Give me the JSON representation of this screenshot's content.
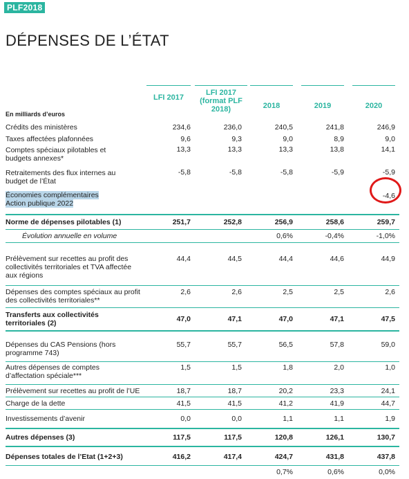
{
  "tag": "PLF2018",
  "title": "DÉPENSES DE L’ÉTAT",
  "unit_label": "En milliards d’euros",
  "columns": [
    "LFI 2017",
    "LFI 2017 (format PLF 2018)",
    "2018",
    "2019",
    "2020"
  ],
  "rows": [
    {
      "label": "Crédits des ministères",
      "values": [
        "234,6",
        "236,0",
        "240,5",
        "241,8",
        "246,9"
      ]
    },
    {
      "label": "Taxes affectées plafonnées",
      "values": [
        "9,6",
        "9,3",
        "9,0",
        "8,9",
        "9,0"
      ]
    },
    {
      "label": "Comptes spéciaux pilotables et budgets annexes*",
      "values": [
        "13,3",
        "13,3",
        "13,3",
        "13,8",
        "14,1"
      ]
    },
    {
      "label": "Retraitements des flux internes au budget de l’État",
      "values": [
        "-5,8",
        "-5,8",
        "-5,8",
        "-5,9",
        "-5,9"
      ]
    },
    {
      "label": "Économies complémentaires Action publique 2022",
      "values": [
        "",
        "",
        "",
        "",
        "-4,6"
      ]
    },
    {
      "label": "Norme de dépenses pilotables (1)",
      "values": [
        "251,7",
        "252,8",
        "256,9",
        "258,6",
        "259,7"
      ]
    },
    {
      "label": "Évolution annuelle en volume",
      "values": [
        "",
        "",
        "0,6%",
        "-0,4%",
        "-1,0%"
      ]
    },
    {
      "label": "Prélèvement sur recettes au profit des collectivités territoriales et TVA affectée aux régions",
      "values": [
        "44,4",
        "44,5",
        "44,4",
        "44,6",
        "44,9"
      ]
    },
    {
      "label": "Dépenses des comptes spéciaux au profit des collectivités territoriales**",
      "values": [
        "2,6",
        "2,6",
        "2,5",
        "2,5",
        "2,6"
      ]
    },
    {
      "label": "Transferts aux collectivités territoriales (2)",
      "values": [
        "47,0",
        "47,1",
        "47,0",
        "47,1",
        "47,5"
      ]
    },
    {
      "label": "Dépenses du CAS Pensions (hors programme 743)",
      "values": [
        "55,7",
        "55,7",
        "56,5",
        "57,8",
        "59,0"
      ]
    },
    {
      "label": "Autres dépenses de comptes d’affectation spéciale***",
      "values": [
        "1,5",
        "1,5",
        "1,8",
        "2,0",
        "1,0"
      ]
    },
    {
      "label": "Prélèvement sur recettes au profit de l’UE",
      "values": [
        "18,7",
        "18,7",
        "20,2",
        "23,3",
        "24,1"
      ]
    },
    {
      "label": "Charge de la dette",
      "values": [
        "41,5",
        "41,5",
        "41,2",
        "41,9",
        "44,7"
      ]
    },
    {
      "label": "Investissements d’avenir",
      "values": [
        "0,0",
        "0,0",
        "1,1",
        "1,1",
        "1,9"
      ]
    },
    {
      "label": "Autres dépenses (3)",
      "values": [
        "117,5",
        "117,5",
        "120,8",
        "126,1",
        "130,7"
      ]
    },
    {
      "label": "Dépenses totales de l’Etat (1+2+3)",
      "values": [
        "416,2",
        "417,4",
        "424,7",
        "431,8",
        "437,8"
      ]
    },
    {
      "label": "",
      "values": [
        "",
        "",
        "0,7%",
        "0,6%",
        "0,0%"
      ]
    }
  ]
}
